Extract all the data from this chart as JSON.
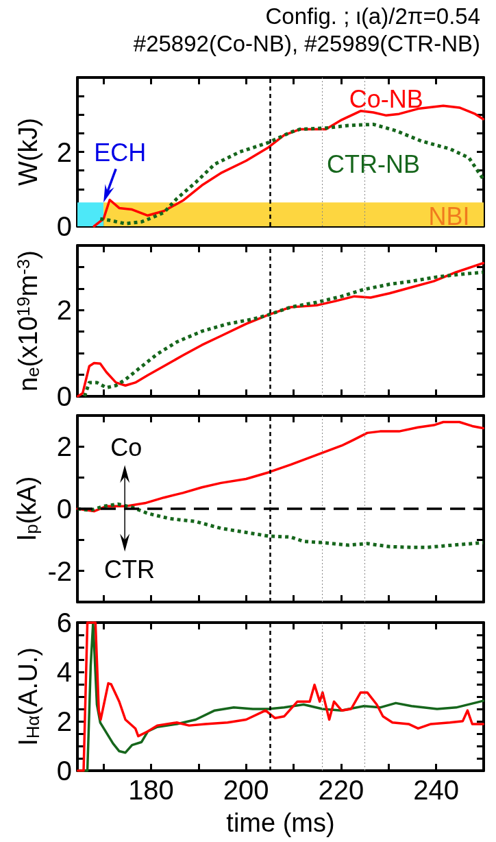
{
  "chart_data": [
    {
      "type": "line",
      "title": "Config. ; ι(a)/2π=0.54",
      "subtitle": "#25892(Co-NB), #25989(CTR-NB)",
      "ylabel": "W(kJ)",
      "marker": "none",
      "tick_labels": "y",
      "xlim": [
        164.5,
        250
      ],
      "xticks": [
        {
          "value": 170,
          "label": null
        },
        {
          "value": 180,
          "label": null
        },
        {
          "value": 190,
          "label": null
        },
        {
          "value": 200,
          "label": null
        },
        {
          "value": 210,
          "label": null
        },
        {
          "value": 220,
          "label": null
        },
        {
          "value": 230,
          "label": null
        },
        {
          "value": 240,
          "label": null
        }
      ],
      "ylim": [
        0,
        4
      ],
      "yticks": [
        0,
        {
          "value": 0.5,
          "label": null
        },
        {
          "value": 1,
          "label": null
        },
        {
          "value": 1.5,
          "label": null
        },
        2,
        {
          "value": 2.5,
          "label": null
        },
        {
          "value": 3,
          "label": null
        },
        {
          "value": 3.5,
          "label": null
        }
      ],
      "annotations": [
        {
          "text": "ECH",
          "x": 170,
          "y": 0.64
        },
        "NBI"
      ],
      "ref_lines": [
        {
          "axis": "x",
          "value": 205,
          "line_style": "dashed",
          "color": "#000000"
        },
        {
          "axis": "x",
          "value": 216,
          "line_style": "dotted",
          "color": "#888888"
        },
        {
          "axis": "x",
          "value": 225,
          "line_style": "dotted",
          "color": "#888888"
        }
      ],
      "series": [
        {
          "type": "area",
          "color": "#4de8f8",
          "x": [
            164.5,
            170
          ],
          "values": [
            0.64,
            0.64
          ]
        },
        {
          "type": "area",
          "color": "#fdd640",
          "x": [
            170,
            250
          ],
          "values": [
            0.64,
            0.64
          ]
        },
        {
          "name": "Co-NB",
          "color": "#ff0000",
          "line_style": "solid",
          "x": [
            168,
            170,
            171.3,
            173.3,
            176,
            179.3,
            182.7,
            186.7,
            190.7,
            194.7,
            200,
            204.7,
            208,
            211.4,
            216.8,
            220.1,
            224.1,
            226.8,
            229.5,
            232.2,
            236.2,
            241.5,
            244.9,
            248.2,
            249.9
          ],
          "values": [
            0,
            0.2,
            0.71,
            0.49,
            0.45,
            0.29,
            0.41,
            0.69,
            1.1,
            1.43,
            1.76,
            2.12,
            2.45,
            2.61,
            2.61,
            2.86,
            3.1,
            3.06,
            2.98,
            3.02,
            3.16,
            3.24,
            3.19,
            3.02,
            2.88
          ]
        },
        {
          "name": "CTR-NB",
          "color": "#16661c",
          "line_style": "dotted",
          "x": [
            169.3,
            171.3,
            174.6,
            178,
            180,
            182.7,
            185.4,
            189.4,
            193.4,
            198.7,
            204.7,
            209.4,
            211.4,
            216.8,
            221.5,
            226.8,
            231.5,
            236.9,
            242.9,
            246.9,
            249.9
          ],
          "values": [
            0.2,
            0.16,
            0.07,
            0.12,
            0.22,
            0.37,
            0.74,
            1.18,
            1.67,
            2.0,
            2.25,
            2.53,
            2.61,
            2.64,
            2.71,
            2.74,
            2.57,
            2.29,
            2.08,
            1.84,
            1.27
          ]
        }
      ]
    },
    {
      "type": "line",
      "ylabel": "n$_{e}$(x10$^{19}$m$^{-3}$)",
      "marker": "none",
      "tick_labels": "y",
      "xlim": [
        164.5,
        250
      ],
      "xticks": [
        {
          "value": 170,
          "label": null
        },
        {
          "value": 180,
          "label": null
        },
        {
          "value": 190,
          "label": null
        },
        {
          "value": 200,
          "label": null
        },
        {
          "value": 210,
          "label": null
        },
        {
          "value": 220,
          "label": null
        },
        {
          "value": 230,
          "label": null
        },
        {
          "value": 240,
          "label": null
        }
      ],
      "ylim": [
        0,
        3.5
      ],
      "yticks": [
        0,
        {
          "value": 0.5,
          "label": null
        },
        {
          "value": 1,
          "label": null
        },
        {
          "value": 1.5,
          "label": null
        },
        2,
        {
          "value": 2.5,
          "label": null
        },
        {
          "value": 3,
          "label": null
        }
      ],
      "ref_lines": [
        {
          "axis": "x",
          "value": 205,
          "line_style": "dashed",
          "color": "#000000"
        },
        {
          "axis": "x",
          "value": 216,
          "line_style": "dotted",
          "color": "#888888"
        },
        {
          "axis": "x",
          "value": 225,
          "line_style": "dotted",
          "color": "#888888"
        }
      ],
      "series": [
        {
          "color": "#ff0000",
          "line_style": "solid",
          "x": [
            164.6,
            165.6,
            167,
            168,
            169.3,
            170.6,
            172.6,
            174.6,
            176.7,
            179.3,
            182.7,
            186.7,
            190.7,
            194.7,
            200,
            204.7,
            209.4,
            214.8,
            218.8,
            222.8,
            226.2,
            230.2,
            234.8,
            239.5,
            244.2,
            248.2,
            249.9
          ],
          "values": [
            0,
            0.07,
            0.7,
            0.77,
            0.76,
            0.56,
            0.32,
            0.25,
            0.32,
            0.49,
            0.7,
            0.95,
            1.19,
            1.4,
            1.68,
            1.89,
            2.07,
            2.11,
            2.21,
            2.32,
            2.29,
            2.39,
            2.53,
            2.67,
            2.88,
            3.03,
            3.09
          ]
        },
        {
          "color": "#16661c",
          "line_style": "dotted",
          "x": [
            166,
            167,
            168.6,
            170.6,
            172.6,
            174.6,
            177.3,
            181.3,
            185.4,
            190.7,
            196.1,
            201.4,
            204.7,
            209.4,
            214.8,
            220.1,
            224.8,
            230.2,
            234.8,
            240.2,
            244.2,
            249.9
          ],
          "values": [
            0,
            0.32,
            0.32,
            0.2,
            0.25,
            0.39,
            0.63,
            0.98,
            1.26,
            1.51,
            1.68,
            1.79,
            1.89,
            2.07,
            2.18,
            2.32,
            2.48,
            2.6,
            2.67,
            2.77,
            2.82,
            2.88
          ]
        }
      ]
    },
    {
      "type": "line",
      "ylabel": "I$_{p}$(kA)",
      "marker": "none",
      "tick_labels": "y",
      "xlim": [
        164.5,
        250
      ],
      "xticks": [
        {
          "value": 170,
          "label": null
        },
        {
          "value": 180,
          "label": null
        },
        {
          "value": 190,
          "label": null
        },
        {
          "value": 200,
          "label": null
        },
        {
          "value": 210,
          "label": null
        },
        {
          "value": 220,
          "label": null
        },
        {
          "value": 230,
          "label": null
        },
        {
          "value": 240,
          "label": null
        }
      ],
      "ylim": [
        -3,
        3
      ],
      "yticks": [
        -2,
        {
          "value": -1,
          "label": null
        },
        0,
        {
          "value": 1,
          "label": null
        },
        2
      ],
      "annotations": [
        "Co",
        "CTR"
      ],
      "ref_lines": [
        {
          "axis": "x",
          "value": 205,
          "line_style": "dashed",
          "color": "#000000"
        },
        {
          "axis": "x",
          "value": 216,
          "line_style": "dotted",
          "color": "#888888"
        },
        {
          "axis": "x",
          "value": 225,
          "line_style": "dotted",
          "color": "#888888"
        },
        {
          "axis": "y",
          "value": 0,
          "line_style": "dashed",
          "color": "#000000"
        }
      ],
      "series": [
        {
          "color": "#ff0000",
          "line_style": "solid",
          "x": [
            164.5,
            168,
            170.6,
            174.6,
            178.7,
            182.7,
            186.7,
            190.7,
            194.7,
            200,
            204.7,
            209.4,
            214.8,
            220.1,
            222.8,
            225.5,
            228.2,
            232.2,
            236.2,
            239.5,
            241.5,
            244.9,
            247.6,
            249.9
          ],
          "values": [
            0,
            -0.08,
            0.08,
            0.08,
            0.18,
            0.36,
            0.51,
            0.69,
            0.83,
            0.96,
            1.17,
            1.42,
            1.73,
            2.03,
            2.23,
            2.44,
            2.49,
            2.49,
            2.62,
            2.69,
            2.79,
            2.79,
            2.66,
            2.59
          ]
        },
        {
          "color": "#16661c",
          "line_style": "dotted",
          "x": [
            164.5,
            167.3,
            170,
            173,
            176,
            179.3,
            184,
            189.4,
            194.7,
            200,
            204.7,
            209.4,
            212.1,
            216.1,
            221.5,
            225.5,
            230.2,
            234.8,
            238.2,
            243.5,
            249.9
          ],
          "values": [
            0,
            -0.05,
            0.08,
            0.15,
            0.05,
            -0.15,
            -0.32,
            -0.41,
            -0.63,
            -0.76,
            -0.88,
            -0.91,
            -1.05,
            -1.09,
            -1.17,
            -1.12,
            -1.22,
            -1.24,
            -1.24,
            -1.17,
            -1.09
          ]
        }
      ]
    },
    {
      "type": "line",
      "ylabel": "I$_{Hα}$(A.U.)",
      "xlabel": "time (ms)",
      "marker": "none",
      "xlim": [
        164.5,
        250
      ],
      "xticks": [
        {
          "value": 170,
          "label": null
        },
        180,
        {
          "value": 190,
          "label": null
        },
        200,
        {
          "value": 210,
          "label": null
        },
        220,
        {
          "value": 230,
          "label": null
        },
        240
      ],
      "ylim": [
        0,
        6
      ],
      "yticks": [
        0,
        {
          "value": 0.5,
          "label": null
        },
        {
          "value": 1,
          "label": null
        },
        {
          "value": 1.5,
          "label": null
        },
        2,
        {
          "value": 2.5,
          "label": null
        },
        {
          "value": 3,
          "label": null
        },
        {
          "value": 3.5,
          "label": null
        },
        4,
        {
          "value": 4.5,
          "label": null
        },
        {
          "value": 5,
          "label": null
        },
        {
          "value": 5.5,
          "label": null
        },
        6
      ],
      "ref_lines": [
        {
          "axis": "x",
          "value": 205,
          "line_style": "dashed",
          "color": "#000000"
        },
        {
          "axis": "x",
          "value": 216,
          "line_style": "dotted",
          "color": "#888888"
        },
        {
          "axis": "x",
          "value": 225,
          "line_style": "dotted",
          "color": "#888888"
        }
      ],
      "series": [
        {
          "color": "#16661c",
          "line_style": "solid",
          "x": [
            164.6,
            166.6,
            167.3,
            167.8,
            168.6,
            169.3,
            172,
            173.3,
            174.6,
            176,
            178,
            179.3,
            181.3,
            185.4,
            189.4,
            193.4,
            197.4,
            201.4,
            204.7,
            208,
            212.1,
            216.1,
            220.1,
            224.8,
            228.2,
            231.5,
            234.8,
            240.2,
            244.2,
            249.9
          ],
          "values": [
            0,
            0,
            4.27,
            6,
            2.68,
            1.95,
            1.1,
            0.79,
            0.73,
            1.04,
            1.16,
            1.59,
            1.77,
            1.89,
            2.07,
            2.44,
            2.56,
            2.5,
            2.5,
            2.56,
            2.68,
            2.5,
            2.44,
            2.62,
            2.56,
            2.74,
            2.62,
            2.5,
            2.56,
            2.83
          ]
        },
        {
          "color": "#ff0000",
          "line_style": "solid",
          "x": [
            164.6,
            165.8,
            166.6,
            168.3,
            169,
            169.4,
            171,
            171.6,
            173.3,
            174.6,
            176.7,
            177.3,
            179.3,
            181.3,
            185.4,
            188,
            191.4,
            196.1,
            200,
            204.1,
            206.1,
            208,
            210.8,
            213.4,
            214.4,
            215.5,
            216.1,
            217.5,
            218.5,
            220.1,
            222.1,
            224.1,
            225.5,
            227.5,
            228.8,
            230.8,
            234.2,
            236.2,
            238.9,
            242.9,
            245.6,
            246.6,
            247.6,
            249.9
          ],
          "values": [
            0,
            0,
            6,
            6,
            2.44,
            2.07,
            3.54,
            3.5,
            2.8,
            2.07,
            1.71,
            1.4,
            1.59,
            1.83,
            1.95,
            1.83,
            1.89,
            1.95,
            2.07,
            2.44,
            2.13,
            2.2,
            2.8,
            2.8,
            3.48,
            2.8,
            3.17,
            2.07,
            2.8,
            2.44,
            2.5,
            3.17,
            3.17,
            2.68,
            2.2,
            1.95,
            1.89,
            1.71,
            1.89,
            1.95,
            2.01,
            2.44,
            1.89,
            1.89
          ]
        }
      ]
    }
  ]
}
